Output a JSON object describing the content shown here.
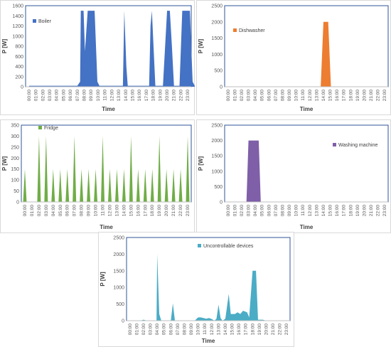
{
  "chart_data": [
    {
      "type": "area",
      "xlabel": "Time",
      "ylabel": "P [W]",
      "ylim": [
        0,
        1600
      ],
      "yticks": [
        "0",
        "200",
        "400",
        "600",
        "800",
        "1000",
        "1200",
        "1400",
        "1600"
      ],
      "legend": "top-left",
      "grid": false,
      "categories": [
        "00:00",
        "01:00",
        "02:00",
        "03:00",
        "04:00",
        "05:00",
        "06:00",
        "07:00",
        "08:00",
        "09:00",
        "10:00",
        "11:00",
        "12:00",
        "13:00",
        "14:00",
        "15:00",
        "16:00",
        "17:00",
        "18:00",
        "19:00",
        "20:00",
        "21:00",
        "22:00",
        "23:00"
      ],
      "series": [
        {
          "name": "Boiler",
          "color": "#4472C4",
          "points": [
            [
              0,
              20
            ],
            [
              7,
              20
            ],
            [
              7.4,
              100
            ],
            [
              7.5,
              1500
            ],
            [
              7.9,
              1500
            ],
            [
              8.1,
              700
            ],
            [
              8.5,
              1500
            ],
            [
              9.5,
              1500
            ],
            [
              9.9,
              100
            ],
            [
              10.2,
              20
            ],
            [
              13.6,
              20
            ],
            [
              13.8,
              1500
            ],
            [
              14.1,
              400
            ],
            [
              14.3,
              20
            ],
            [
              17.4,
              20
            ],
            [
              17.6,
              1200
            ],
            [
              17.8,
              1500
            ],
            [
              18,
              900
            ],
            [
              18.3,
              20
            ],
            [
              19.4,
              20
            ],
            [
              20,
              1500
            ],
            [
              20.4,
              1500
            ],
            [
              20.7,
              800
            ],
            [
              21,
              20
            ],
            [
              21.8,
              20
            ],
            [
              22.2,
              1500
            ],
            [
              23.3,
              1500
            ],
            [
              23.7,
              100
            ],
            [
              24,
              20
            ]
          ]
        }
      ]
    },
    {
      "type": "area",
      "xlabel": "Time",
      "ylabel": "P [W]",
      "ylim": [
        0,
        2500
      ],
      "yticks": [
        "0",
        "500",
        "1000",
        "1500",
        "2000",
        "2500"
      ],
      "legend": "top-left",
      "grid": false,
      "categories": [
        "00:00",
        "01:00",
        "02:00",
        "03:00",
        "04:00",
        "05:00",
        "06:00",
        "07:00",
        "08:00",
        "09:00",
        "10:00",
        "11:00",
        "12:00",
        "13:00",
        "14:00",
        "15:00",
        "16:00",
        "17:00",
        "18:00",
        "19:00",
        "20:00",
        "21:00",
        "22:00",
        "23:00"
      ],
      "series": [
        {
          "name": "Dishwasher",
          "color": "#ED7D31",
          "points": [
            [
              0,
              0
            ],
            [
              13.6,
              0
            ],
            [
              14,
              2000
            ],
            [
              14.7,
              2000
            ],
            [
              15.1,
              0
            ],
            [
              24,
              0
            ]
          ]
        }
      ]
    },
    {
      "type": "area",
      "xlabel": "Time",
      "ylabel": "P [W]",
      "ylim": [
        0,
        350
      ],
      "yticks": [
        "0",
        "50",
        "100",
        "150",
        "200",
        "250",
        "300",
        "350"
      ],
      "legend": "top-left",
      "grid": false,
      "categories": [
        "00:00",
        "01:00",
        "02:00",
        "03:00",
        "04:00",
        "05:00",
        "06:00",
        "07:00",
        "08:00",
        "09:00",
        "10:00",
        "11:00",
        "12:00",
        "13:00",
        "14:00",
        "15:00",
        "16:00",
        "17:00",
        "18:00",
        "19:00",
        "20:00",
        "21:00",
        "22:00",
        "23:00"
      ],
      "series": [
        {
          "name": "Fridge",
          "color": "#70AD47",
          "peaks": [
            [
              0,
              150
            ],
            [
              2,
              300
            ],
            [
              3,
              300
            ],
            [
              4,
              150
            ],
            [
              5,
              150
            ],
            [
              6,
              150
            ],
            [
              7,
              300
            ],
            [
              8,
              150
            ],
            [
              9,
              150
            ],
            [
              10,
              150
            ],
            [
              11,
              300
            ],
            [
              12,
              150
            ],
            [
              13,
              150
            ],
            [
              14,
              150
            ],
            [
              15,
              300
            ],
            [
              16,
              150
            ],
            [
              17,
              150
            ],
            [
              18,
              150
            ],
            [
              19,
              300
            ],
            [
              20,
              150
            ],
            [
              21,
              150
            ],
            [
              22,
              150
            ],
            [
              23,
              300
            ]
          ]
        }
      ]
    },
    {
      "type": "area",
      "xlabel": "Time",
      "ylabel": "P [W]",
      "ylim": [
        0,
        2500
      ],
      "yticks": [
        "0",
        "500",
        "1000",
        "1500",
        "2000",
        "2500"
      ],
      "legend": "right",
      "grid": false,
      "categories": [
        "00:00",
        "01:00",
        "02:00",
        "03:00",
        "04:00",
        "05:00",
        "06:00",
        "07:00",
        "08:00",
        "09:00",
        "10:00",
        "11:00",
        "12:00",
        "13:00",
        "14:00",
        "15:00",
        "16:00",
        "17:00",
        "18:00",
        "19:00",
        "20:00",
        "21:00",
        "22:00",
        "23:00"
      ],
      "series": [
        {
          "name": "Washing machine",
          "color": "#7F5FA8",
          "points": [
            [
              0,
              0
            ],
            [
              2.7,
              0
            ],
            [
              3,
              2000
            ],
            [
              4.5,
              2000
            ],
            [
              4.8,
              0
            ],
            [
              24,
              0
            ]
          ]
        }
      ]
    },
    {
      "type": "area",
      "xlabel": "Time",
      "ylabel": "P [W]",
      "ylim": [
        0,
        2500
      ],
      "yticks": [
        "0",
        "500",
        "1000",
        "1500",
        "2000",
        "2500"
      ],
      "legend": "top-center",
      "grid": false,
      "categories": [
        "00:00",
        "01:00",
        "02:00",
        "03:00",
        "04:00",
        "05:00",
        "06:00",
        "07:00",
        "08:00",
        "09:00",
        "10:00",
        "11:00",
        "12:00",
        "13:00",
        "14:00",
        "15:00",
        "16:00",
        "17:00",
        "18:00",
        "19:00",
        "20:00",
        "21:00",
        "22:00",
        "23:00"
      ],
      "series": [
        {
          "name": "Uncontrollable devices",
          "color": "#4BACC6",
          "points": [
            [
              0,
              0
            ],
            [
              1.5,
              0
            ],
            [
              2,
              30
            ],
            [
              2.5,
              0
            ],
            [
              3.9,
              0
            ],
            [
              4,
              2000
            ],
            [
              4.3,
              200
            ],
            [
              4.6,
              0
            ],
            [
              6,
              0
            ],
            [
              6.3,
              520
            ],
            [
              6.6,
              0
            ],
            [
              9.5,
              0
            ],
            [
              10,
              100
            ],
            [
              10.4,
              100
            ],
            [
              10.8,
              80
            ],
            [
              11.2,
              60
            ],
            [
              11.6,
              80
            ],
            [
              12,
              50
            ],
            [
              12.4,
              0
            ],
            [
              12.7,
              60
            ],
            [
              13,
              480
            ],
            [
              13.3,
              80
            ],
            [
              13.6,
              0
            ],
            [
              14,
              60
            ],
            [
              14.5,
              800
            ],
            [
              14.8,
              200
            ],
            [
              15.4,
              200
            ],
            [
              15.8,
              250
            ],
            [
              16.2,
              200
            ],
            [
              16.6,
              300
            ],
            [
              17.2,
              250
            ],
            [
              17.5,
              100
            ],
            [
              18,
              1500
            ],
            [
              18.5,
              1500
            ],
            [
              18.8,
              30
            ],
            [
              19.5,
              30
            ],
            [
              20,
              0
            ],
            [
              24,
              0
            ]
          ]
        }
      ]
    }
  ]
}
